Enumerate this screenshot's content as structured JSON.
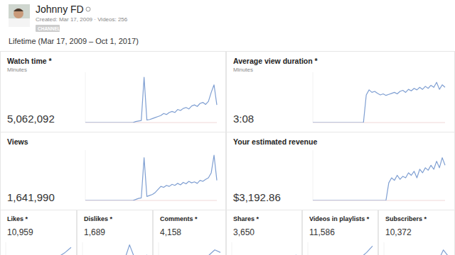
{
  "header": {
    "name": "Johnny FD",
    "meta": "Created: Mar 17, 2009 · Videos: 256",
    "badge": "CHANNEL",
    "period": "Lifetime (Mar 17, 2009 – Oct 1, 2017)"
  },
  "chart_data": [
    {
      "type": "line",
      "title": "Watch time *",
      "subtitle": "Minutes",
      "annotations": [
        "5,062,092"
      ],
      "color": "#7f9fd2",
      "tick_labels": false,
      "ylim": [
        0,
        100
      ],
      "categories": [
        null,
        null,
        null,
        null,
        null,
        null,
        null,
        null,
        null,
        null,
        null,
        null,
        null,
        null,
        null,
        null,
        null,
        null,
        null,
        null,
        null,
        null,
        null,
        null,
        null,
        null,
        null,
        null,
        null,
        null,
        null,
        null,
        null,
        null,
        null,
        null,
        null,
        null,
        null,
        null,
        null,
        null,
        null,
        null,
        null,
        null,
        null,
        null
      ],
      "values": [
        0,
        0,
        0,
        0,
        0,
        0,
        0,
        0,
        0,
        0,
        0,
        0,
        0,
        0,
        0,
        0,
        0,
        0,
        2,
        3,
        4,
        90,
        5,
        6,
        8,
        10,
        12,
        14,
        18,
        16,
        20,
        22,
        20,
        26,
        24,
        28,
        30,
        27,
        33,
        35,
        32,
        38,
        40,
        36,
        42,
        60,
        75,
        35
      ]
    },
    {
      "type": "line",
      "title": "Average view duration *",
      "subtitle": "Minutes",
      "annotations": [
        "3:08"
      ],
      "color": "#7f9fd2",
      "tick_labels": false,
      "ylim": [
        0,
        100
      ],
      "categories": [
        null,
        null,
        null,
        null,
        null,
        null,
        null,
        null,
        null,
        null,
        null,
        null,
        null,
        null,
        null,
        null,
        null,
        null,
        null,
        null,
        null,
        null,
        null,
        null,
        null,
        null,
        null,
        null,
        null,
        null,
        null,
        null,
        null,
        null,
        null,
        null,
        null,
        null,
        null,
        null,
        null,
        null,
        null,
        null,
        null,
        null,
        null,
        null
      ],
      "values": [
        0,
        0,
        0,
        0,
        0,
        0,
        0,
        0,
        0,
        0,
        0,
        0,
        0,
        0,
        0,
        0,
        0,
        0,
        0,
        55,
        65,
        60,
        62,
        58,
        55,
        57,
        54,
        56,
        58,
        60,
        57,
        62,
        64,
        60,
        66,
        63,
        68,
        65,
        70,
        66,
        72,
        68,
        74,
        70,
        80,
        66,
        75,
        70
      ]
    },
    {
      "type": "line",
      "title": "Views",
      "annotations": [
        "1,641,990"
      ],
      "color": "#7f9fd2",
      "tick_labels": false,
      "ylim": [
        0,
        100
      ],
      "categories": [
        null,
        null,
        null,
        null,
        null,
        null,
        null,
        null,
        null,
        null,
        null,
        null,
        null,
        null,
        null,
        null,
        null,
        null,
        null,
        null,
        null,
        null,
        null,
        null,
        null,
        null,
        null,
        null,
        null,
        null,
        null,
        null,
        null,
        null,
        null,
        null,
        null,
        null,
        null,
        null,
        null,
        null,
        null,
        null,
        null,
        null,
        null,
        null
      ],
      "values": [
        0,
        0,
        0,
        0,
        0,
        0,
        0,
        0,
        0,
        0,
        0,
        0,
        0,
        0,
        0,
        0,
        0,
        0,
        2,
        4,
        5,
        85,
        8,
        10,
        12,
        16,
        22,
        28,
        26,
        30,
        28,
        32,
        30,
        34,
        31,
        36,
        33,
        38,
        35,
        37,
        34,
        40,
        38,
        42,
        45,
        55,
        90,
        40
      ]
    },
    {
      "type": "line",
      "title": "Your estimated revenue",
      "annotations": [
        "$3,192.86"
      ],
      "color": "#7f9fd2",
      "tick_labels": false,
      "ylim": [
        0,
        100
      ],
      "categories": [
        null,
        null,
        null,
        null,
        null,
        null,
        null,
        null,
        null,
        null,
        null,
        null,
        null,
        null,
        null,
        null,
        null,
        null,
        null,
        null,
        null,
        null,
        null,
        null,
        null,
        null,
        null,
        null,
        null,
        null,
        null,
        null,
        null,
        null,
        null,
        null,
        null,
        null,
        null,
        null,
        null,
        null,
        null,
        null,
        null,
        null,
        null,
        null
      ],
      "values": [
        0,
        0,
        0,
        0,
        0,
        0,
        0,
        0,
        0,
        0,
        0,
        0,
        0,
        0,
        0,
        0,
        0,
        0,
        0,
        0,
        0,
        0,
        0,
        0,
        0,
        0,
        0,
        35,
        45,
        40,
        50,
        42,
        48,
        45,
        55,
        50,
        58,
        45,
        62,
        55,
        65,
        60,
        70,
        62,
        78,
        65,
        85,
        70
      ]
    },
    {
      "type": "line",
      "title": "Likes *",
      "annotations": [
        "10,959"
      ],
      "color": "#7f9fd2",
      "tick_labels": false,
      "ylim": [
        0,
        100
      ],
      "categories": [
        null,
        null,
        null,
        null,
        null,
        null,
        null,
        null,
        null,
        null,
        null,
        null
      ],
      "values": [
        0,
        0,
        0,
        0,
        0,
        0,
        10,
        20,
        30,
        45,
        60,
        80
      ]
    },
    {
      "type": "line",
      "title": "Dislikes *",
      "annotations": [
        "1,689"
      ],
      "color": "#7f9fd2",
      "tick_labels": false,
      "ylim": [
        0,
        100
      ],
      "categories": [
        null,
        null,
        null,
        null,
        null,
        null,
        null,
        null,
        null,
        null,
        null,
        null
      ],
      "values": [
        0,
        0,
        0,
        0,
        0,
        0,
        0,
        20,
        90,
        30,
        40,
        50
      ]
    },
    {
      "type": "line",
      "title": "Comments *",
      "annotations": [
        "4,158"
      ],
      "color": "#7f9fd2",
      "tick_labels": false,
      "ylim": [
        0,
        100
      ],
      "categories": [
        null,
        null,
        null,
        null,
        null,
        null,
        null,
        null,
        null,
        null,
        null,
        null
      ],
      "values": [
        0,
        0,
        0,
        0,
        0,
        0,
        15,
        25,
        35,
        50,
        70,
        60
      ]
    },
    {
      "type": "line",
      "title": "Shares *",
      "annotations": [
        "3,650"
      ],
      "color": "#7f9fd2",
      "tick_labels": false,
      "ylim": [
        0,
        100
      ],
      "categories": [
        null,
        null,
        null,
        null,
        null,
        null,
        null,
        null,
        null,
        null,
        null,
        null
      ],
      "values": [
        0,
        0,
        0,
        0,
        0,
        0,
        0,
        10,
        20,
        30,
        40,
        50
      ]
    },
    {
      "type": "line",
      "title": "Videos in playlists *",
      "annotations": [
        "11,586"
      ],
      "color": "#7f9fd2",
      "tick_labels": false,
      "ylim": [
        0,
        100
      ],
      "categories": [
        null,
        null,
        null,
        null,
        null,
        null,
        null,
        null,
        null,
        null,
        null,
        null
      ],
      "values": [
        0,
        0,
        0,
        0,
        0,
        0,
        0,
        0,
        20,
        40,
        60,
        85
      ]
    },
    {
      "type": "line",
      "title": "Subscribers *",
      "annotations": [
        "10,372"
      ],
      "color": "#7f9fd2",
      "tick_labels": false,
      "ylim": [
        0,
        100
      ],
      "categories": [
        null,
        null,
        null,
        null,
        null,
        null,
        null,
        null,
        null,
        null,
        null,
        null
      ],
      "values": [
        0,
        0,
        0,
        0,
        0,
        0,
        0,
        0,
        0,
        20,
        70,
        40
      ]
    }
  ]
}
